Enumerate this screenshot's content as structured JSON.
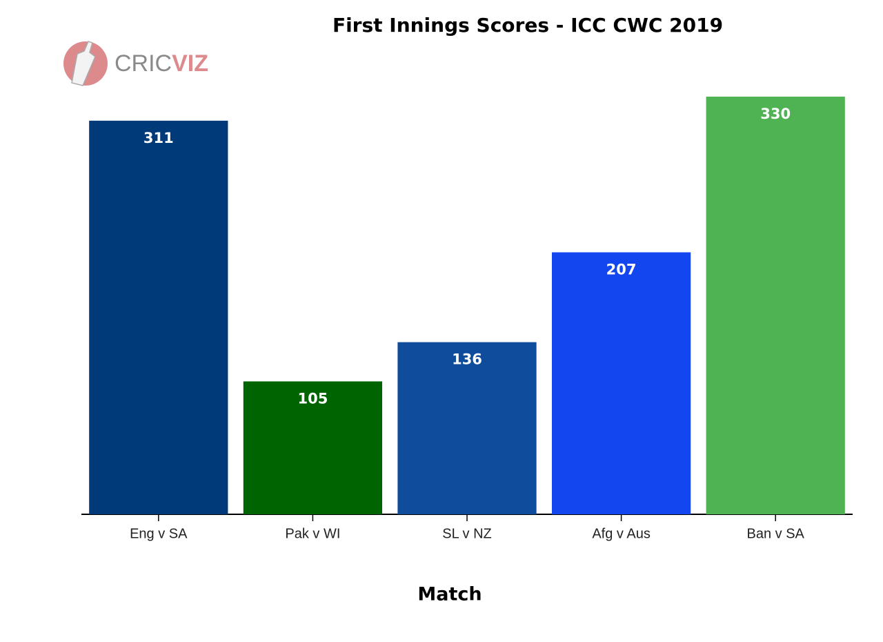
{
  "chart_data": {
    "type": "bar",
    "title": "First Innings Scores - ICC CWC 2019",
    "logo_text": [
      "CRIC",
      "VIZ"
    ],
    "x_label": "Match",
    "categories": [
      "Eng v SA",
      "Pak v WI",
      "SL v NZ",
      "Afg v Aus",
      "Ban v SA"
    ],
    "values": [
      311,
      105,
      136,
      207,
      330
    ],
    "colors": [
      "#003a78",
      "#006400",
      "#0f4c9c",
      "#1446f0",
      "#4fb253"
    ]
  }
}
